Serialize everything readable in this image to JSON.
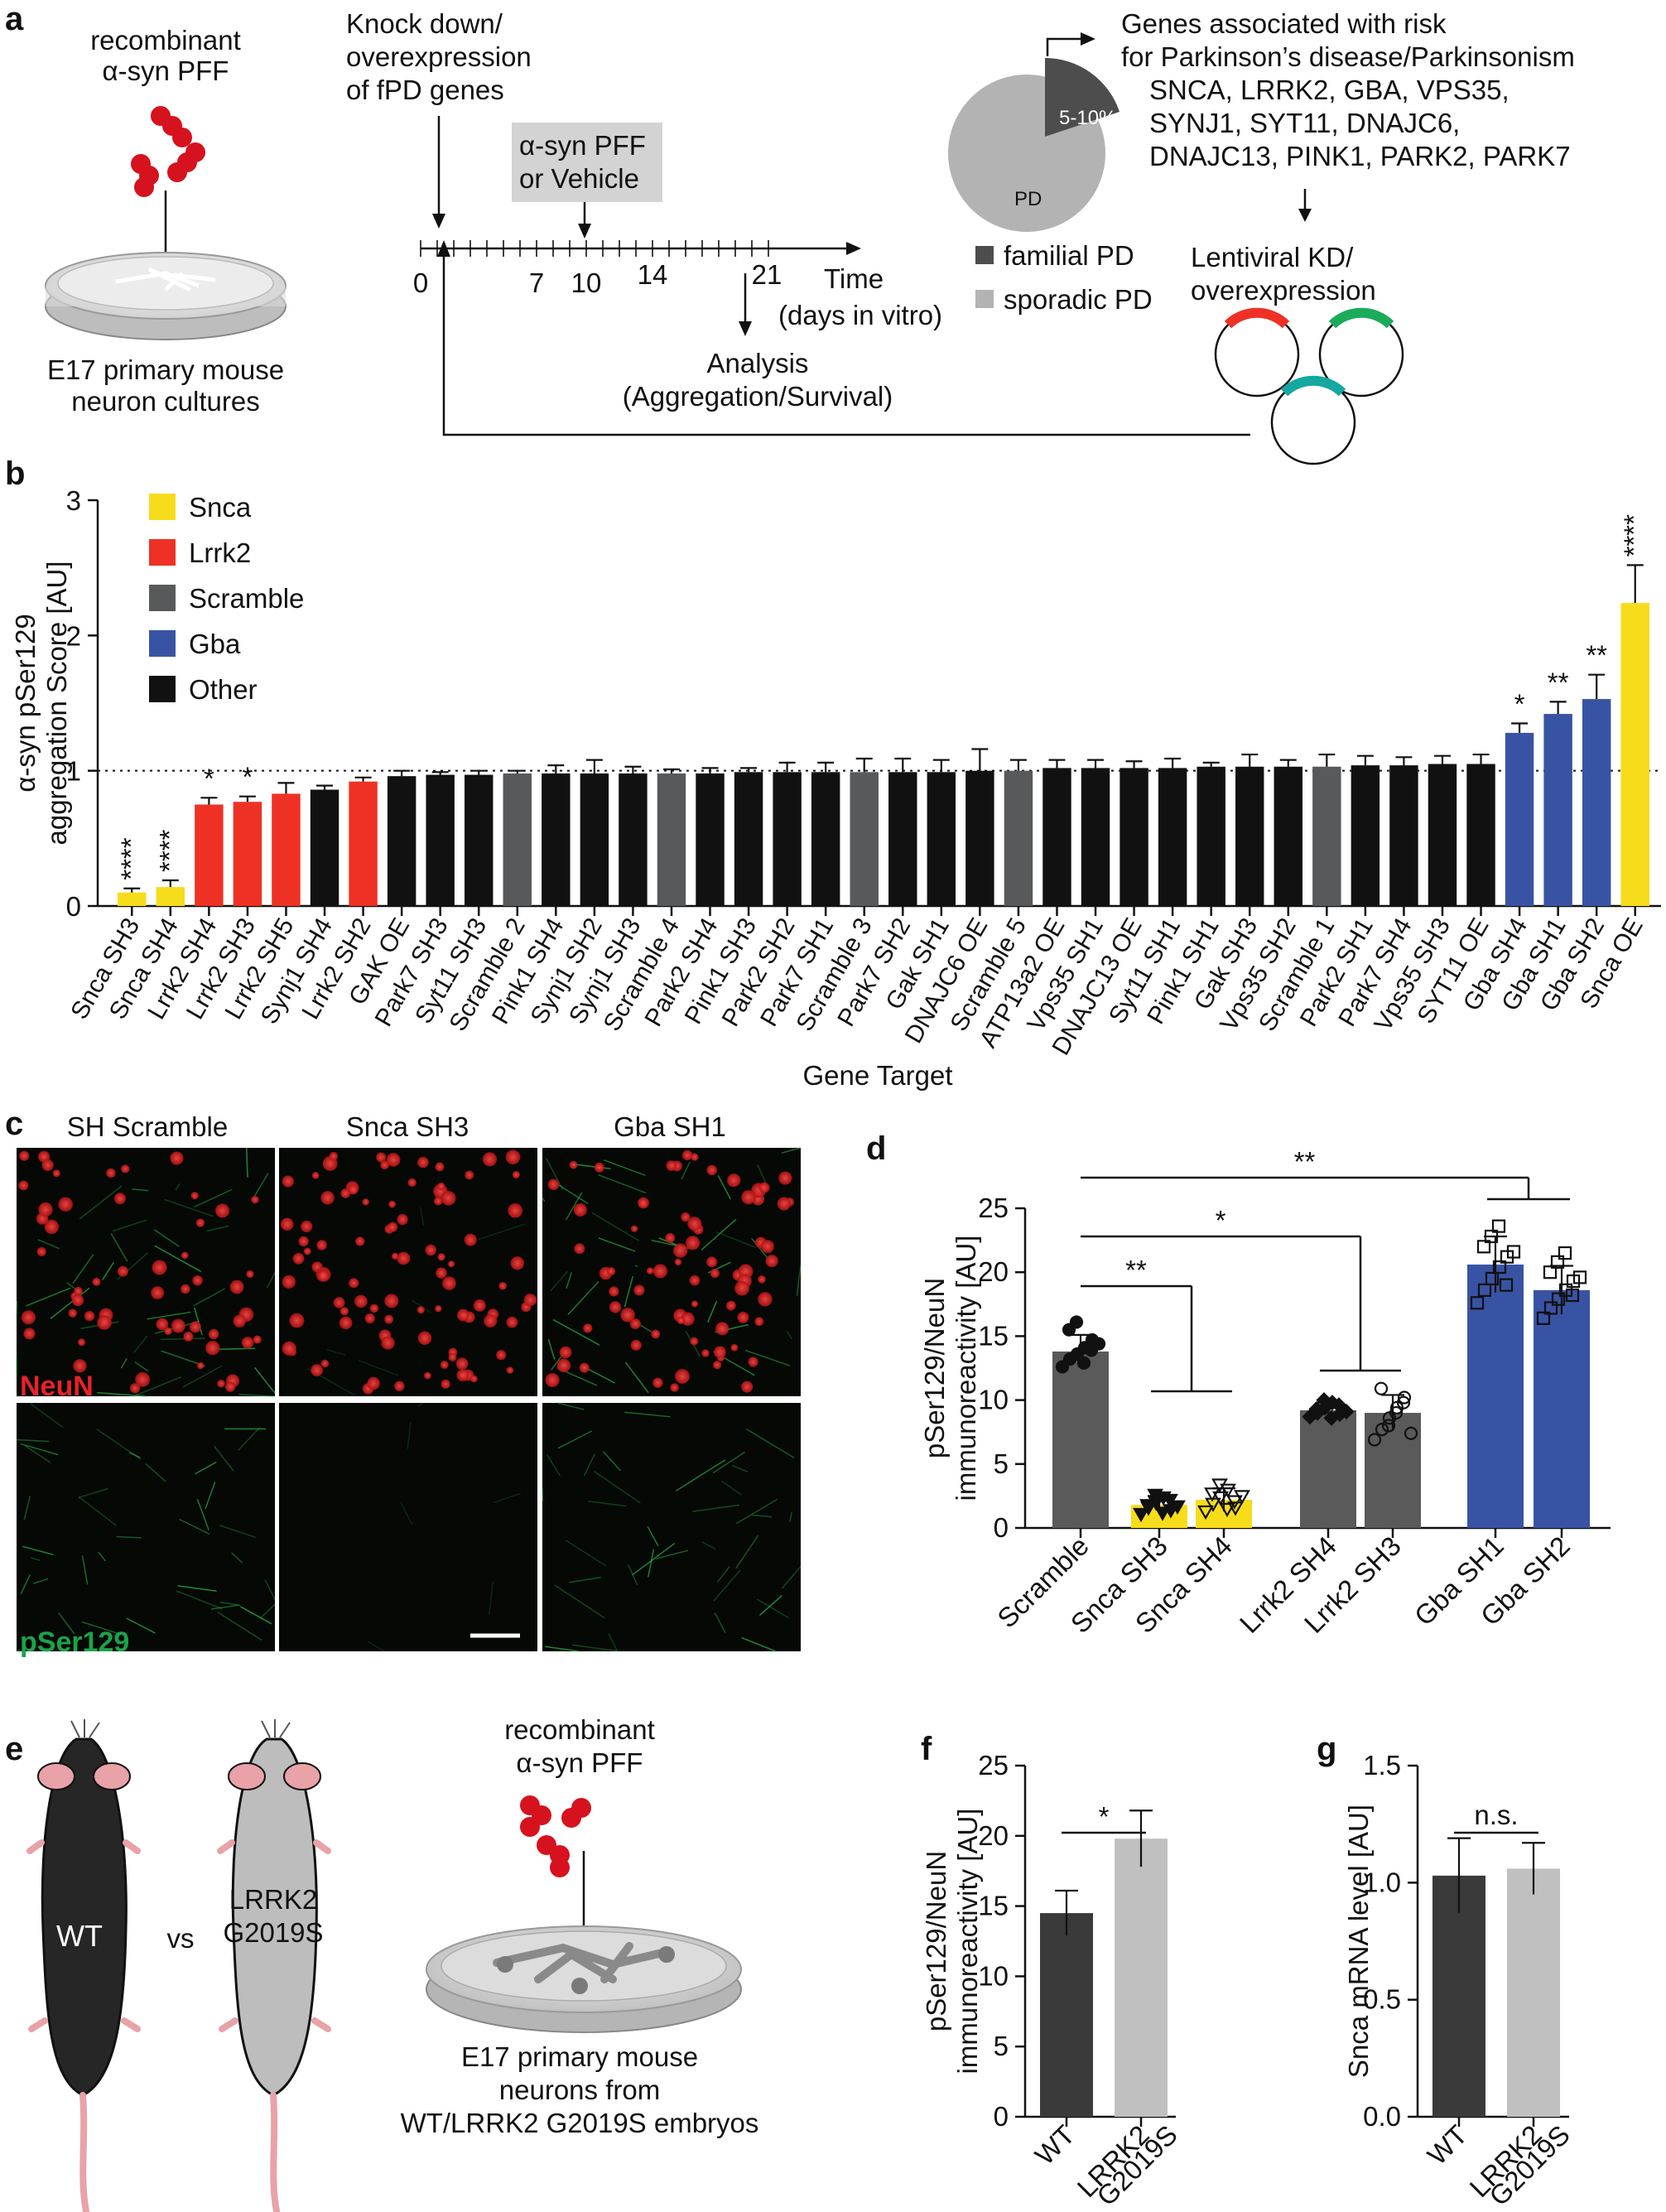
{
  "panels": {
    "a": {
      "label": "a",
      "pff_label": [
        "recombinant",
        "α-syn PFF"
      ],
      "culture_label": [
        "E17 primary mouse",
        "neuron cultures"
      ],
      "knockdown_label": [
        "Knock down/",
        "overexpression",
        "of fPD genes"
      ],
      "treatment_label": [
        "α-syn PFF",
        "or Vehicle"
      ],
      "timeline_ticks": [
        "0",
        "7",
        "10",
        "14",
        "21"
      ],
      "time_label": [
        "Time",
        "(days in vitro)"
      ],
      "analysis_label": [
        "Analysis",
        "(Aggregation/Survival)"
      ],
      "pie_inner_familial": "5-10%",
      "pie_inner_sporadic": "PD",
      "legend_familial": "familial PD",
      "legend_sporadic": "sporadic PD",
      "genes_title": [
        "Genes associated with risk",
        "for Parkinson’s disease/Parkinsonism"
      ],
      "genes_list": [
        "SNCA, LRRK2, GBA, VPS35,",
        "SYNJ1, SYT11, DNAJC6,",
        "DNAJC13, PINK1, PARK2, PARK7"
      ],
      "lentiviral_label": [
        "Lentiviral KD/",
        "overexpression"
      ]
    },
    "b": {
      "label": "b"
    },
    "c": {
      "label": "c",
      "column_titles": [
        "SH Scramble",
        "Snca SH3",
        "Gba SH1"
      ],
      "row_labels": [
        "NeuN",
        "pSer129"
      ]
    },
    "d": {
      "label": "d"
    },
    "e": {
      "label": "e",
      "wt_label": "WT",
      "vs_label": "vs",
      "mutant_label": [
        "LRRK2",
        "G2019S"
      ],
      "pff_label": [
        "recombinant",
        "α-syn PFF"
      ],
      "culture_label": [
        "E17 primary mouse",
        "neurons  from",
        "WT/LRRK2 G2019S embryos"
      ]
    },
    "f": {
      "label": "f"
    },
    "g": {
      "label": "g"
    }
  },
  "chart_data": [
    {
      "id": "b",
      "type": "bar",
      "ylabel": [
        "α-syn pSer129",
        "aggregation Score [AU]"
      ],
      "xlabel": "Gene Target",
      "ylim": [
        0,
        3
      ],
      "yticks": [
        "0",
        "1",
        "2",
        "3"
      ],
      "reference_line": 1,
      "legend": [
        {
          "name": "Snca",
          "color": "#f7dc1b"
        },
        {
          "name": "Lrrk2",
          "color": "#ee3124"
        },
        {
          "name": "Scramble",
          "color": "#58595b"
        },
        {
          "name": "Gba",
          "color": "#3953a4"
        },
        {
          "name": "Other",
          "color": "#111111"
        }
      ],
      "categories": [
        "Snca SH3",
        "Snca SH4",
        "Lrrk2 SH4",
        "Lrrk2 SH3",
        "Lrrk2 SH5",
        "Synj1 SH4",
        "Lrrk2 SH2",
        "GAK OE",
        "Park7 SH3",
        "Syt11 SH3",
        "Scramble 2",
        "Pink1 SH4",
        "Synj1 SH2",
        "Synj1 SH3",
        "Scramble 4",
        "Park2 SH4",
        "Pink1 SH3",
        "Park2 SH2",
        "Park7 SH1",
        "Scramble 3",
        "Park7 SH2",
        "Gak SH1",
        "DNAJC6 OE",
        "Scramble 5",
        "ATP13a2 OE",
        "Vps35 SH1",
        "DNAJC13 OE",
        "Syt11 SH1",
        "Pink1 SH1",
        "Gak SH3",
        "Vps35 SH2",
        "Scramble 1",
        "Park2 SH1",
        "Park7 SH4",
        "Vps35 SH3",
        "SYT11 OE",
        "Gba SH4",
        "Gba SH1",
        "Gba SH2",
        "Snca OE"
      ],
      "values": [
        0.1,
        0.14,
        0.75,
        0.77,
        0.83,
        0.86,
        0.92,
        0.96,
        0.97,
        0.97,
        0.98,
        0.98,
        0.98,
        0.98,
        0.98,
        0.98,
        0.99,
        0.99,
        0.99,
        0.99,
        0.99,
        0.99,
        1.0,
        1.0,
        1.02,
        1.02,
        1.02,
        1.02,
        1.03,
        1.03,
        1.03,
        1.03,
        1.04,
        1.04,
        1.05,
        1.05,
        1.28,
        1.42,
        1.53,
        2.24
      ],
      "errors": [
        0.03,
        0.05,
        0.05,
        0.04,
        0.08,
        0.03,
        0.03,
        0.04,
        0.02,
        0.03,
        0.02,
        0.06,
        0.1,
        0.05,
        0.03,
        0.04,
        0.03,
        0.07,
        0.07,
        0.1,
        0.1,
        0.09,
        0.16,
        0.08,
        0.06,
        0.06,
        0.05,
        0.07,
        0.03,
        0.09,
        0.05,
        0.09,
        0.07,
        0.06,
        0.06,
        0.07,
        0.07,
        0.09,
        0.18,
        0.28
      ],
      "groups": [
        "Snca",
        "Snca",
        "Lrrk2",
        "Lrrk2",
        "Lrrk2",
        "Other",
        "Lrrk2",
        "Other",
        "Other",
        "Other",
        "Scramble",
        "Other",
        "Other",
        "Other",
        "Scramble",
        "Other",
        "Other",
        "Other",
        "Other",
        "Scramble",
        "Other",
        "Other",
        "Other",
        "Scramble",
        "Other",
        "Other",
        "Other",
        "Other",
        "Other",
        "Other",
        "Other",
        "Scramble",
        "Other",
        "Other",
        "Other",
        "Other",
        "Gba",
        "Gba",
        "Gba",
        "Snca"
      ],
      "significance": {
        "0": "****",
        "1": "****",
        "2": "*",
        "3": "*",
        "36": "*",
        "37": "**",
        "38": "**",
        "39": "****"
      }
    },
    {
      "id": "d",
      "type": "bar",
      "ylabel": [
        "pSer129/NeuN",
        "immunoreactivity [AU]"
      ],
      "ylim": [
        0,
        25
      ],
      "yticks": [
        "0",
        "5",
        "10",
        "15",
        "20",
        "25"
      ],
      "categories": [
        "Scramble",
        "Snca SH3",
        "Snca SH4",
        "Lrrk2 SH4",
        "Lrrk2 SH3",
        "Gba SH1",
        "Gba SH2"
      ],
      "values": [
        13.8,
        1.8,
        2.2,
        9.2,
        9.0,
        20.6,
        18.6
      ],
      "errors": [
        1.3,
        0.7,
        0.9,
        0.6,
        1.4,
        2.2,
        1.9
      ],
      "colors": [
        "#5a5a5a",
        "#f7dc1b",
        "#f7dc1b",
        "#5a5a5a",
        "#5a5a5a",
        "#3953a4",
        "#3953a4"
      ],
      "markers": [
        "filled-circle",
        "filled-triangle",
        "open-triangle",
        "filled-diamond",
        "open-circle",
        "open-square",
        "open-square"
      ],
      "points": [
        [
          12.6,
          13.2,
          13.6,
          14.1,
          14.7,
          15.5,
          16.1,
          12.9,
          13.9,
          14.4
        ],
        [
          1.1,
          1.6,
          2.0,
          2.4,
          1.4,
          1.8,
          2.6,
          1.2,
          2.2,
          1.7
        ],
        [
          1.3,
          1.9,
          2.4,
          3.0,
          1.6,
          2.7,
          3.4,
          1.5,
          2.1,
          2.5
        ],
        [
          8.7,
          9.0,
          9.4,
          9.8,
          8.9,
          9.3,
          10.0,
          8.6,
          9.6,
          9.1
        ],
        [
          6.9,
          7.7,
          8.6,
          9.4,
          10.2,
          10.9,
          8.0,
          9.0,
          9.8,
          7.4
        ],
        [
          17.6,
          18.6,
          19.5,
          20.4,
          21.2,
          22.0,
          22.8,
          23.6,
          19.0,
          21.6
        ],
        [
          16.4,
          17.2,
          17.9,
          18.6,
          19.3,
          20.0,
          20.8,
          21.5,
          18.2,
          19.6
        ]
      ],
      "comparisons": [
        {
          "label": "**",
          "from": 0,
          "to": [
            1,
            2
          ]
        },
        {
          "label": "*",
          "from": 0,
          "to": [
            3,
            4
          ]
        },
        {
          "label": "**",
          "from": 0,
          "to": [
            5,
            6
          ]
        }
      ]
    },
    {
      "id": "f",
      "type": "bar",
      "ylabel": [
        "pSer129/NeuN",
        "immunoreactivity [AU]"
      ],
      "ylim": [
        0,
        25
      ],
      "yticks": [
        "0",
        "5",
        "10",
        "15",
        "20",
        "25"
      ],
      "categories": [
        "WT",
        "LRRK2 G2019S"
      ],
      "category_lines": [
        [
          "WT"
        ],
        [
          "LRRK2",
          "G2019S"
        ]
      ],
      "values": [
        14.5,
        19.8
      ],
      "errors": [
        1.6,
        2.0
      ],
      "colors": [
        "#3a3a3a",
        "#c0c0c0"
      ],
      "comparisons": [
        {
          "label": "*",
          "from": 0,
          "to": [
            1
          ]
        }
      ]
    },
    {
      "id": "g",
      "type": "bar",
      "ylabel": [
        "Snca mRNA level [AU]"
      ],
      "ylim": [
        0,
        1.5
      ],
      "yticks": [
        "0.0",
        "0.5",
        "1.0",
        "1.5"
      ],
      "categories": [
        "WT",
        "LRRK2 G2019S"
      ],
      "category_lines": [
        [
          "WT"
        ],
        [
          "LRRK2",
          "G2019S"
        ]
      ],
      "values": [
        1.03,
        1.06
      ],
      "errors": [
        0.16,
        0.11
      ],
      "colors": [
        "#3a3a3a",
        "#c0c0c0"
      ],
      "comparisons": [
        {
          "label": "n.s.",
          "from": 0,
          "to": [
            1
          ]
        }
      ]
    }
  ]
}
